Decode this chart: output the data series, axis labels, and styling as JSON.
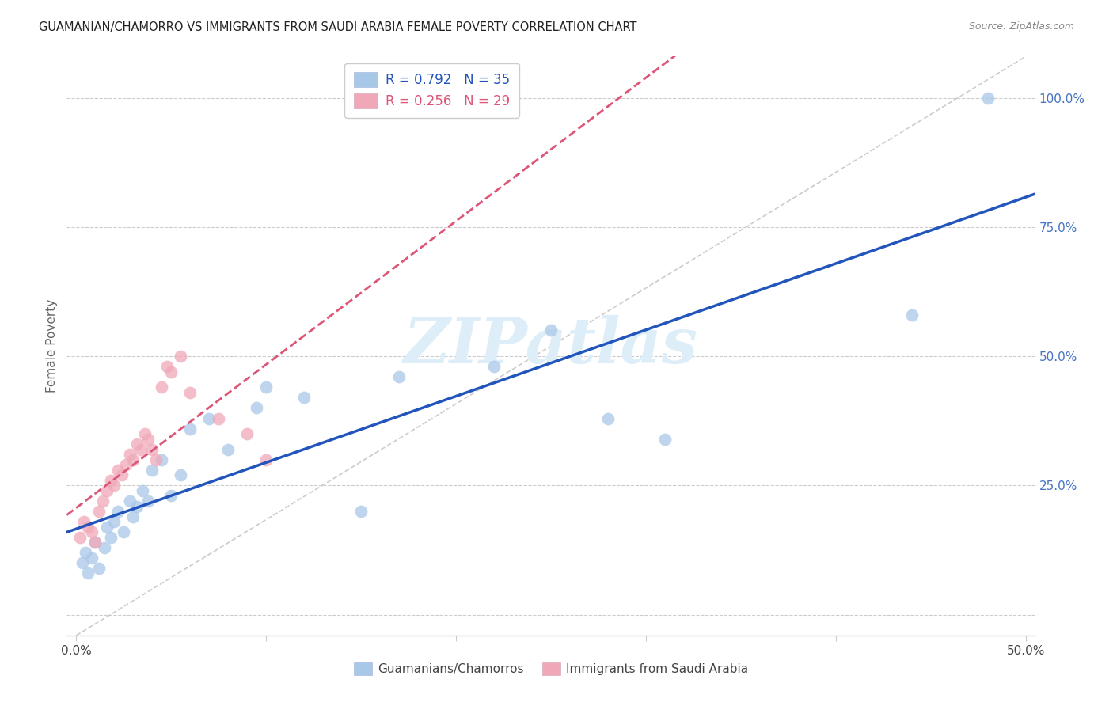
{
  "title": "GUAMANIAN/CHAMORRO VS IMMIGRANTS FROM SAUDI ARABIA FEMALE POVERTY CORRELATION CHART",
  "source": "Source: ZipAtlas.com",
  "ylabel": "Female Poverty",
  "xlim": [
    -0.005,
    0.505
  ],
  "ylim": [
    -0.04,
    1.08
  ],
  "xtick_vals": [
    0.0,
    0.1,
    0.2,
    0.3,
    0.4,
    0.5
  ],
  "xtick_labels": [
    "0.0%",
    "",
    "",
    "",
    "",
    "50.0%"
  ],
  "ytick_right_vals": [
    0.0,
    0.25,
    0.5,
    0.75,
    1.0
  ],
  "ytick_right_labels": [
    "",
    "25.0%",
    "50.0%",
    "75.0%",
    "100.0%"
  ],
  "blue_fill": "#a8c8e8",
  "pink_fill": "#f0a8b8",
  "blue_line": "#2255bb",
  "pink_line": "#dd5577",
  "gray_dash": "#cccccc",
  "right_tick_color": "#4472c4",
  "title_color": "#222222",
  "source_color": "#888888",
  "ylabel_color": "#666666",
  "watermark_color": "#ddeef8",
  "watermark_text": "ZIPatlas",
  "legend_blue_label": "R = 0.792   N = 35",
  "legend_pink_label": "R = 0.256   N = 29",
  "bottom_legend_blue": "Guamanians/Chamorros",
  "bottom_legend_pink": "Immigrants from Saudi Arabia",
  "blue_x": [
    0.003,
    0.005,
    0.006,
    0.008,
    0.01,
    0.012,
    0.015,
    0.016,
    0.018,
    0.02,
    0.022,
    0.025,
    0.028,
    0.03,
    0.032,
    0.035,
    0.038,
    0.04,
    0.045,
    0.05,
    0.055,
    0.06,
    0.07,
    0.08,
    0.095,
    0.1,
    0.12,
    0.15,
    0.17,
    0.22,
    0.25,
    0.28,
    0.31,
    0.44,
    0.48
  ],
  "blue_y": [
    0.1,
    0.12,
    0.08,
    0.11,
    0.14,
    0.09,
    0.13,
    0.17,
    0.15,
    0.18,
    0.2,
    0.16,
    0.22,
    0.19,
    0.21,
    0.24,
    0.22,
    0.28,
    0.3,
    0.23,
    0.27,
    0.36,
    0.38,
    0.32,
    0.4,
    0.44,
    0.42,
    0.2,
    0.46,
    0.48,
    0.55,
    0.38,
    0.34,
    0.58,
    1.0
  ],
  "pink_x": [
    0.002,
    0.004,
    0.006,
    0.008,
    0.01,
    0.012,
    0.014,
    0.016,
    0.018,
    0.02,
    0.022,
    0.024,
    0.026,
    0.028,
    0.03,
    0.032,
    0.034,
    0.036,
    0.038,
    0.04,
    0.042,
    0.045,
    0.048,
    0.05,
    0.055,
    0.06,
    0.075,
    0.09,
    0.1
  ],
  "pink_y": [
    0.15,
    0.18,
    0.17,
    0.16,
    0.14,
    0.2,
    0.22,
    0.24,
    0.26,
    0.25,
    0.28,
    0.27,
    0.29,
    0.31,
    0.3,
    0.33,
    0.32,
    0.35,
    0.34,
    0.32,
    0.3,
    0.44,
    0.48,
    0.47,
    0.5,
    0.43,
    0.38,
    0.35,
    0.3
  ]
}
